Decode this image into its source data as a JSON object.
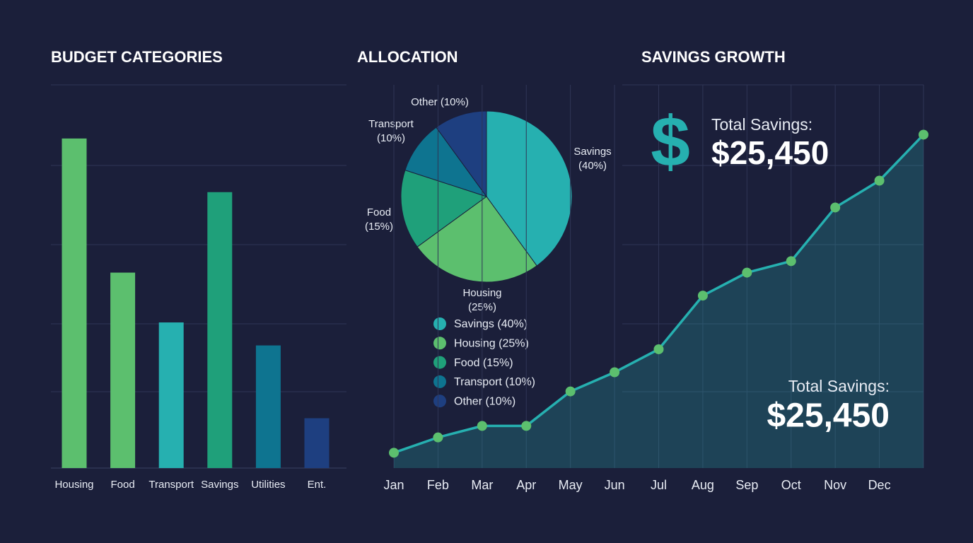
{
  "chart_data": [
    {
      "type": "bar",
      "title": "BUDGET CATEGORIES",
      "categories": [
        "Housing",
        "Food",
        "Transport",
        "Savings",
        "Utilities",
        "Ent."
      ],
      "values": [
        86,
        51,
        38,
        72,
        32,
        13
      ],
      "colors": [
        "#5cbf6e",
        "#5cbf6e",
        "#26b0b0",
        "#1fa07a",
        "#0e7490",
        "#1e3f80"
      ],
      "ylim": [
        0,
        100
      ],
      "grid": true
    },
    {
      "type": "pie",
      "title": "ALLOCATION",
      "categories": [
        "Savings",
        "Housing",
        "Food",
        "Transport",
        "Other"
      ],
      "values": [
        40,
        25,
        15,
        10,
        10
      ],
      "colors": [
        "#26b0b0",
        "#5cbf6e",
        "#1fa07a",
        "#0e7490",
        "#1e3f80"
      ],
      "slice_labels": [
        [
          "Savings",
          "(40%)"
        ],
        [
          "Housing",
          "(25%)"
        ],
        [
          "Food",
          "(15%)"
        ],
        [
          "Transport",
          "(10%)"
        ],
        [
          "Other (10%)"
        ]
      ],
      "legend_labels": [
        "Savings (40%)",
        "Housing (25%)",
        "Food (15%)",
        "Transport (10%)",
        "Other (10%)"
      ]
    },
    {
      "type": "line",
      "title": "SAVINGS GROWTH",
      "categories": [
        "Jan",
        "Feb",
        "Mar",
        "Apr",
        "May",
        "Jun",
        "Jul",
        "Aug",
        "Sep",
        "Oct",
        "Nov",
        "Dec",
        null
      ],
      "values": [
        4,
        8,
        11,
        11,
        20,
        25,
        31,
        45,
        51,
        54,
        68,
        75,
        87
      ],
      "color": "#26b0b0",
      "marker_color": "#5cbf6e",
      "ylim": [
        0,
        100
      ],
      "grid": true,
      "annotations": [
        "$",
        "Total Savings:",
        "$25,450",
        "Total Savings:",
        "$25,450"
      ]
    }
  ]
}
